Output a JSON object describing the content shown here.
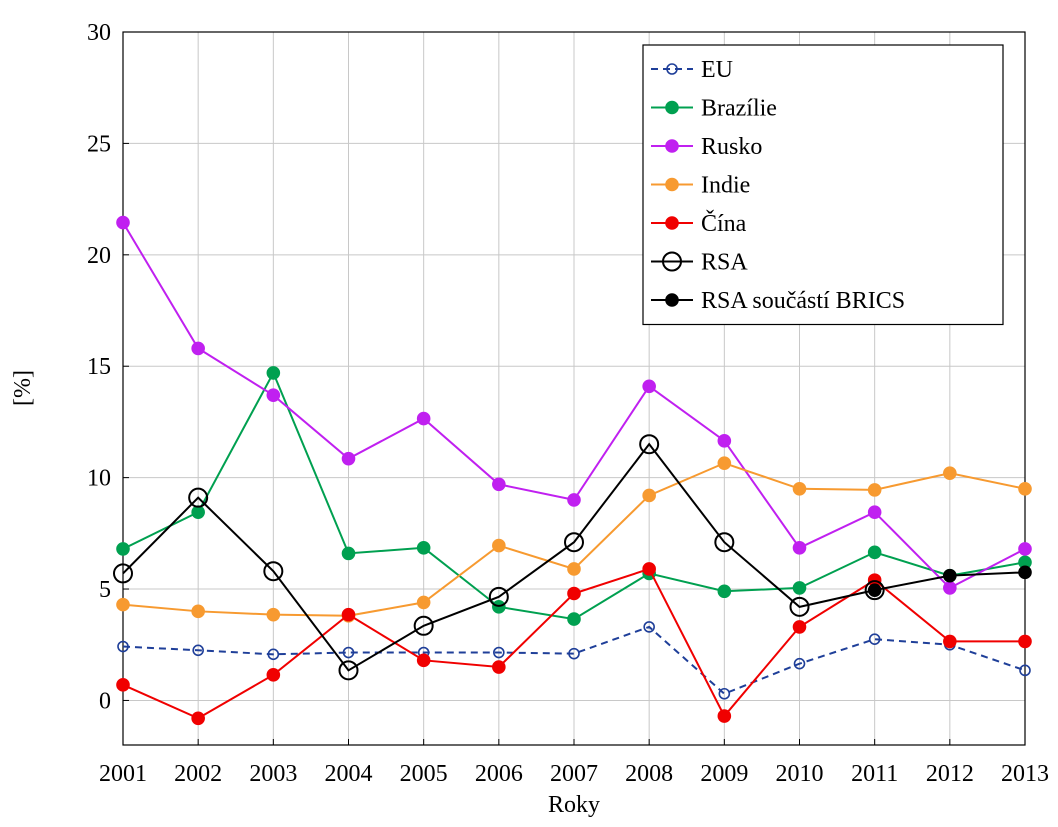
{
  "chart_data": {
    "type": "line",
    "x_label": "Roky",
    "y_label": "[%]",
    "x": [
      2001,
      2002,
      2003,
      2004,
      2005,
      2006,
      2007,
      2008,
      2009,
      2010,
      2011,
      2012,
      2013
    ],
    "xlim": [
      2001,
      2013
    ],
    "xticks": [
      2001,
      2002,
      2003,
      2004,
      2005,
      2006,
      2007,
      2008,
      2009,
      2010,
      2011,
      2012,
      2013
    ],
    "ylim": [
      -2,
      30
    ],
    "yticks": [
      0,
      5,
      10,
      15,
      20,
      25,
      30
    ],
    "grid": true,
    "legend": "upper right",
    "series": [
      {
        "name": "EU",
        "color": "#1f3f99",
        "marker": "open",
        "dashed": true,
        "values": [
          2.42,
          2.25,
          2.07,
          2.15,
          2.15,
          2.15,
          2.1,
          3.3,
          0.3,
          1.65,
          2.75,
          2.5,
          1.35
        ]
      },
      {
        "name": "Brazílie",
        "color": "#00a050",
        "marker": "filled",
        "values": [
          6.8,
          8.45,
          14.7,
          6.6,
          6.85,
          4.2,
          3.65,
          5.7,
          4.9,
          5.05,
          6.65,
          5.6,
          6.2
        ]
      },
      {
        "name": "Rusko",
        "color": "#c020f0",
        "marker": "filled",
        "values": [
          21.45,
          15.8,
          13.7,
          10.85,
          12.65,
          9.7,
          9.0,
          14.1,
          11.65,
          6.85,
          8.45,
          5.05,
          6.8
        ]
      },
      {
        "name": "Indie",
        "color": "#f79a30",
        "marker": "filled",
        "values": [
          4.3,
          4.0,
          3.85,
          3.8,
          4.4,
          6.95,
          5.9,
          9.2,
          10.65,
          9.5,
          9.45,
          10.2,
          9.5
        ]
      },
      {
        "name": "Čína",
        "color": "#f00000",
        "marker": "filled",
        "values": [
          0.7,
          -0.8,
          1.15,
          3.85,
          1.8,
          1.5,
          4.8,
          5.9,
          -0.7,
          3.3,
          5.4,
          2.65,
          2.65
        ]
      },
      {
        "name": "RSA",
        "color": "#000000",
        "marker": "big-open",
        "values": [
          5.7,
          9.1,
          5.8,
          1.35,
          3.35,
          4.65,
          7.1,
          11.5,
          7.1,
          4.2,
          4.95,
          null,
          null
        ]
      },
      {
        "name": "RSA součástí BRICS",
        "color": "#000000",
        "marker": "filled",
        "values": [
          null,
          null,
          null,
          null,
          null,
          null,
          null,
          null,
          null,
          null,
          4.95,
          5.6,
          5.75
        ]
      }
    ]
  }
}
